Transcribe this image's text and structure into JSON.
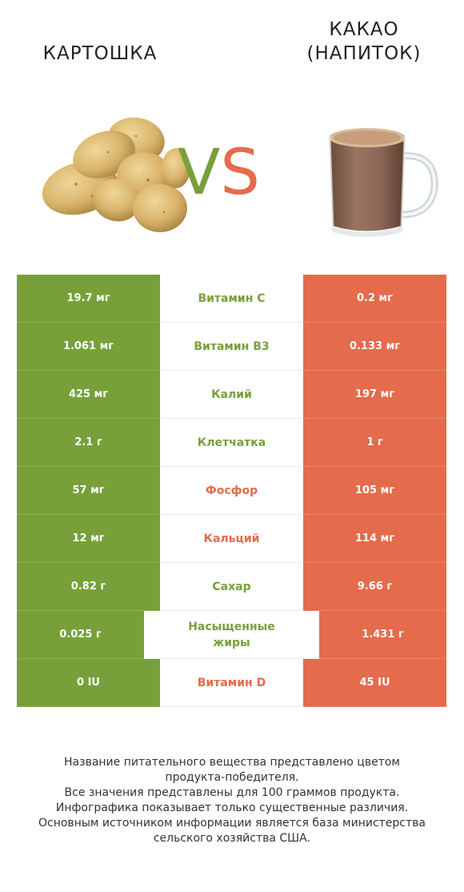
{
  "product_left": {
    "name": "КАРТОШКА",
    "image": "potatoes-image"
  },
  "product_right": {
    "name_line1": "КАКАО",
    "name_line2": "(НАПИТОК)",
    "image": "cocoa-mug-image"
  },
  "vs": {
    "v": "V",
    "s": "S"
  },
  "colors": {
    "left": "#77a03a",
    "right": "#e46b4c"
  },
  "rows": [
    {
      "left": "19.7 мг",
      "name": "Витамин C",
      "right": "0.2 мг",
      "winner": "left"
    },
    {
      "left": "1.061 мг",
      "name": "Витамин B3",
      "right": "0.133 мг",
      "winner": "left"
    },
    {
      "left": "425 мг",
      "name": "Калий",
      "right": "197 мг",
      "winner": "left"
    },
    {
      "left": "2.1 г",
      "name": "Клетчатка",
      "right": "1 г",
      "winner": "left"
    },
    {
      "left": "57 мг",
      "name": "Фосфор",
      "right": "105 мг",
      "winner": "right"
    },
    {
      "left": "12 мг",
      "name": "Кальций",
      "right": "114 мг",
      "winner": "right"
    },
    {
      "left": "0.82 г",
      "name": "Сахар",
      "right": "9.66 г",
      "winner": "left"
    },
    {
      "left": "0.025 г",
      "name": "Насыщенные жиры",
      "right": "1.431 г",
      "winner": "left"
    },
    {
      "left": "0 IU",
      "name": "Витамин D",
      "right": "45 IU",
      "winner": "right"
    }
  ],
  "footer": {
    "line1": "Название питательного вещества представлено цветом",
    "line2": "продукта-победителя.",
    "line3": "Все значения представлены для 100 граммов продукта.",
    "line4": "Инфографика показывает только существенные различия.",
    "line5": "Основным источником информации является база министерства",
    "line6": "сельского хозяйства США."
  }
}
